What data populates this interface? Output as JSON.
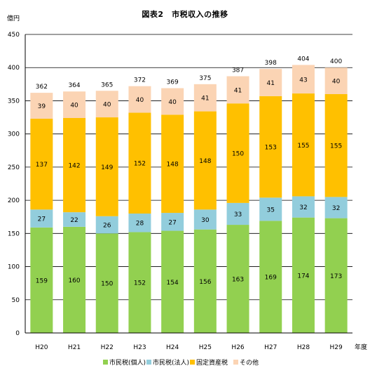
{
  "chart_data": {
    "type": "bar",
    "stacked": true,
    "title": "図表2　市税収入の推移",
    "ylabel": "億円",
    "xlabel": "年度",
    "ylim": [
      0,
      450
    ],
    "yticks": [
      0,
      50,
      100,
      150,
      200,
      250,
      300,
      350,
      400,
      450
    ],
    "grid": true,
    "legend_position": "bottom",
    "categories": [
      "H20",
      "H21",
      "H22",
      "H23",
      "H24",
      "H25",
      "H26",
      "H27",
      "H28",
      "H29"
    ],
    "series": [
      {
        "name": "市民税(個人)",
        "color": "#92d050",
        "values": [
          159,
          160,
          150,
          152,
          154,
          156,
          163,
          169,
          174,
          173
        ]
      },
      {
        "name": "市民税(法人)",
        "color": "#92cddc",
        "values": [
          27,
          22,
          26,
          28,
          27,
          30,
          33,
          35,
          32,
          32
        ]
      },
      {
        "name": "固定資産税",
        "color": "#ffc000",
        "values": [
          137,
          142,
          149,
          152,
          148,
          148,
          150,
          153,
          155,
          155
        ]
      },
      {
        "name": "その他",
        "color": "#fbd4b4",
        "values": [
          39,
          40,
          40,
          40,
          40,
          41,
          41,
          41,
          43,
          40
        ]
      }
    ],
    "totals": [
      362,
      364,
      365,
      372,
      369,
      375,
      387,
      398,
      404,
      400
    ]
  }
}
